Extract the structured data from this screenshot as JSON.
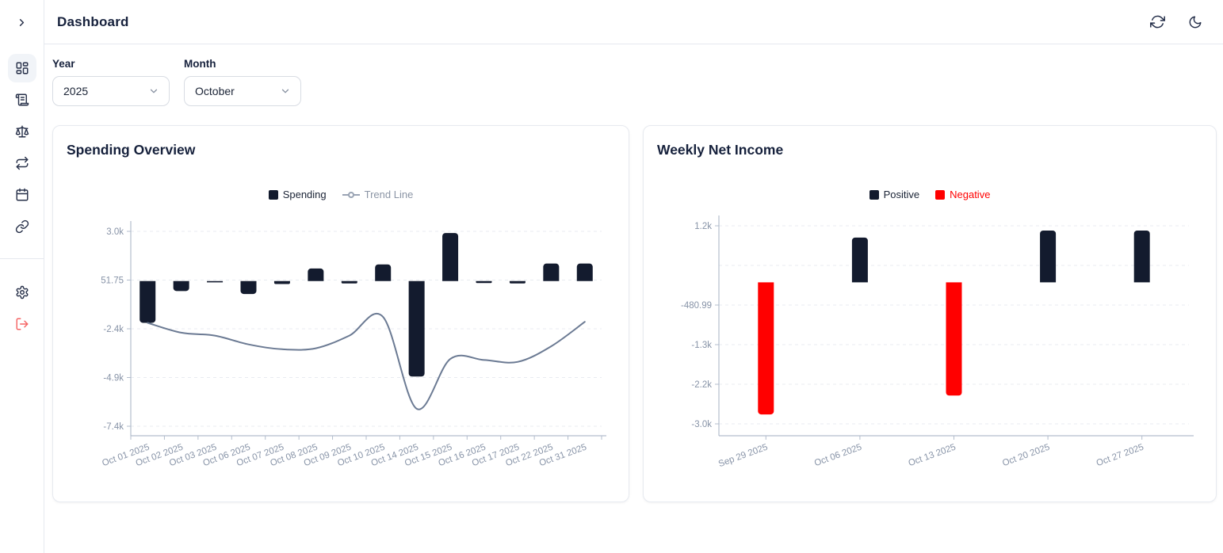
{
  "header": {
    "title": "Dashboard"
  },
  "sidebar": {
    "items": [
      {
        "name": "dashboard",
        "icon": "dashboard-grid-icon",
        "active": true
      },
      {
        "name": "transactions",
        "icon": "scroll-icon",
        "active": false
      },
      {
        "name": "balance",
        "icon": "scales-icon",
        "active": false
      },
      {
        "name": "recurring",
        "icon": "repeat-icon",
        "active": false
      },
      {
        "name": "calendar",
        "icon": "calendar-icon",
        "active": false
      },
      {
        "name": "links",
        "icon": "link-icon",
        "active": false
      }
    ],
    "bottom_items": [
      {
        "name": "settings",
        "icon": "gear-icon"
      },
      {
        "name": "logout",
        "icon": "logout-icon",
        "color": "#f56464"
      }
    ]
  },
  "filters": {
    "year_label": "Year",
    "year_value": "2025",
    "month_label": "Month",
    "month_value": "October"
  },
  "colors": {
    "bar_dark": "#131b2e",
    "bar_red": "#ff0000",
    "trend_line": "#6b7a93",
    "axis_line": "#b3bdcd",
    "axis_label": "#8793a7",
    "grid_line": "#e8ebf1",
    "title_text": "#16213c",
    "logout_red": "#f56464"
  },
  "chart_data": [
    {
      "type": "bar",
      "title": "Spending Overview",
      "legend_position": "top",
      "grid": "dashed-horizontal",
      "categories": [
        "Oct 01 2025",
        "Oct 02 2025",
        "Oct 03 2025",
        "Oct 06 2025",
        "Oct 07 2025",
        "Oct 08 2025",
        "Oct 09 2025",
        "Oct 10 2025",
        "Oct 14 2025",
        "Oct 15 2025",
        "Oct 16 2025",
        "Oct 17 2025",
        "Oct 22 2025",
        "Oct 31 2025"
      ],
      "series": [
        {
          "name": "Spending",
          "type": "bar",
          "color": "#131b2e",
          "label_color": "#1a2335",
          "values": [
            -2100,
            -500,
            -60,
            -650,
            -150,
            750,
            -120,
            1000,
            -4850,
            2900,
            -100,
            -120,
            1050,
            1050
          ]
        },
        {
          "name": "Trend Line",
          "type": "line",
          "color": "#6b7a93",
          "label_color": "#8b95a5",
          "values": [
            -2100,
            -2600,
            -2750,
            -3200,
            -3450,
            -3400,
            -2750,
            -1800,
            -6500,
            -3950,
            -4000,
            -4100,
            -3300,
            -2050
          ]
        }
      ],
      "y_ticks": [
        {
          "label": "3.0k",
          "value": 3000
        },
        {
          "label": "51.75",
          "value": 51.75
        },
        {
          "label": "-2.4k",
          "value": -2400
        },
        {
          "label": "-4.9k",
          "value": -4900
        },
        {
          "label": "-7.4k",
          "value": -7400
        }
      ],
      "ylim": [
        -7400,
        3000
      ]
    },
    {
      "type": "bar",
      "title": "Weekly Net Income",
      "legend_position": "top",
      "grid": "dashed-horizontal",
      "categories": [
        "Sep 29 2025",
        "Oct 06 2025",
        "Oct 13 2025",
        "Oct 20 2025",
        "Oct 27 2025"
      ],
      "series": [
        {
          "name": "Positive",
          "type": "bar",
          "color": "#131b2e",
          "label_color": "#1a2335"
        },
        {
          "name": "Negative",
          "type": "bar",
          "color": "#ff0000",
          "label_color": "#ff0000"
        }
      ],
      "values": [
        -2800,
        950,
        -2400,
        1100,
        1100
      ],
      "y_ticks": [
        {
          "label": "1.2k",
          "value": 1200
        },
        {
          "label": "",
          "value": 360
        },
        {
          "label": "-480.99",
          "value": -480.99
        },
        {
          "label": "-1.3k",
          "value": -1320
        },
        {
          "label": "-2.2k",
          "value": -2160
        },
        {
          "label": "-3.0k",
          "value": -3000
        }
      ],
      "ylim": [
        -3000,
        1200
      ]
    }
  ]
}
